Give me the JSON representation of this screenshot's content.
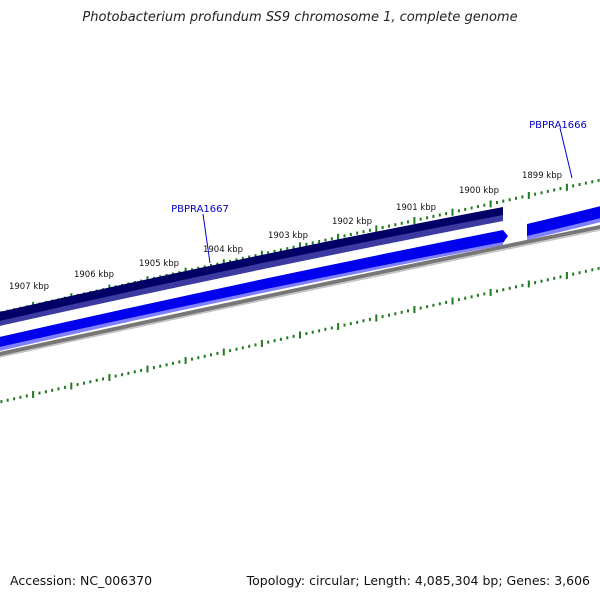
{
  "title": "Photobacterium profundum SS9 chromosome 1, complete genome",
  "footer": {
    "accession": "Accession: NC_006370",
    "topology": "Topology: circular; Length: 4,085,304 bp; Genes: 3,606"
  },
  "colors": {
    "tick": "#1f7a1f",
    "gene_dark": "#000066",
    "gene": "#0000ee",
    "backbone": "#777777",
    "label": "#0000cc"
  },
  "kbp_labels": [
    "1899 kbp",
    "1900 kbp",
    "1901 kbp",
    "1902 kbp",
    "1903 kbp",
    "1904 kbp",
    "1905 kbp",
    "1906 kbp",
    "1907 kbp"
  ],
  "genes": [
    {
      "id": "PBPRA1666"
    },
    {
      "id": "PBPRA1667"
    }
  ]
}
